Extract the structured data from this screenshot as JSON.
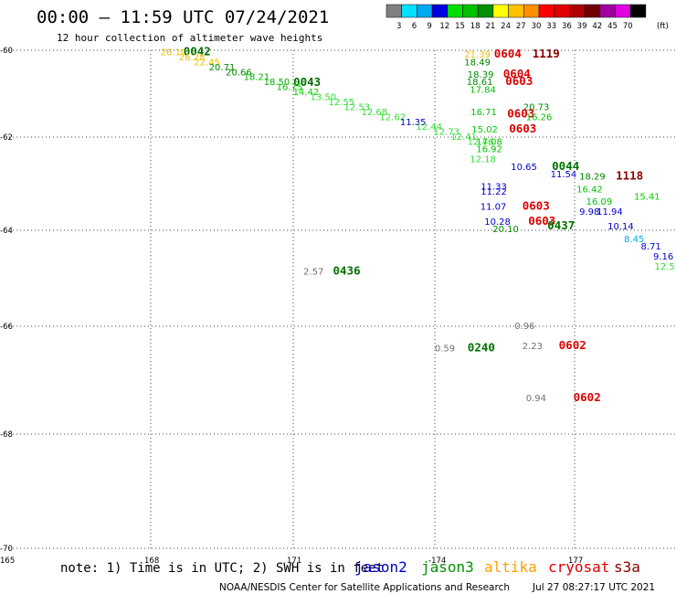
{
  "title": "00:00 – 11:59 UTC 07/24/2021",
  "subtitle": "12 hour collection of altimeter wave heights",
  "note": "note: 1) Time is in UTC; 2) SWH is in feet",
  "credit": "NOAA/NESDIS Center for Satellite Applications and Research",
  "generated": "Jul 27 08:27:17 UTC 2021",
  "colorbar": {
    "unit": "(ft)",
    "colors": [
      "#808080",
      "#00e0ff",
      "#00a8f0",
      "#0000e0",
      "#00e000",
      "#00c000",
      "#009000",
      "#ffff00",
      "#ffc000",
      "#ff9000",
      "#ff0000",
      "#e00000",
      "#b00000",
      "#700000",
      "#a000a0",
      "#e000e0",
      "#000000"
    ],
    "labels": [
      "3",
      "6",
      "9",
      "12",
      "15",
      "18",
      "21",
      "24",
      "27",
      "30",
      "33",
      "36",
      "39",
      "42",
      "45",
      "70"
    ]
  },
  "legend": [
    {
      "name": "jason2",
      "color": "#0000cc"
    },
    {
      "name": "jason3",
      "color": "#009000"
    },
    {
      "name": "altika",
      "color": "#ffa000"
    },
    {
      "name": "cryosat",
      "color": "#dd0000"
    },
    {
      "name": "s3a",
      "color": "#880000"
    }
  ],
  "chart_data": {
    "type": "scatter",
    "x_ticks": [
      "165",
      "168",
      "171",
      "-174",
      "177"
    ],
    "y_ticks": [
      "-60",
      "-62",
      "-64",
      "-66",
      "-68",
      "-70"
    ],
    "ylim": [
      -70,
      -60
    ],
    "grid": true,
    "points": [
      {
        "t": "26.10",
        "lon": 168.32,
        "lat": -60.1,
        "c": "#f0c000"
      },
      {
        "t": "0042",
        "lon": 168.82,
        "lat": -60.1,
        "c": "#007000",
        "time": true
      },
      {
        "t": "26.28",
        "lon": 168.72,
        "lat": -60.2,
        "c": "#f0c000"
      },
      {
        "t": "22.45",
        "lon": 169.05,
        "lat": -60.3,
        "c": "#f0c000"
      },
      {
        "t": "20.71",
        "lon": 169.38,
        "lat": -60.4,
        "c": "#008800"
      },
      {
        "t": "20.66",
        "lon": 169.75,
        "lat": -60.5,
        "c": "#008800"
      },
      {
        "t": "18.21",
        "lon": 170.14,
        "lat": -60.6,
        "c": "#00b000"
      },
      {
        "t": "18.50",
        "lon": 170.58,
        "lat": -60.7,
        "c": "#00b000"
      },
      {
        "t": "0043",
        "lon": 171.23,
        "lat": -60.72,
        "c": "#007000",
        "time": true
      },
      {
        "t": "16.75",
        "lon": 170.86,
        "lat": -60.8,
        "c": "#00c000"
      },
      {
        "t": "14.42",
        "lon": 171.22,
        "lat": -60.9,
        "c": "#00d000"
      },
      {
        "t": "13.50",
        "lon": 171.6,
        "lat": -61.0,
        "c": "#33dd33"
      },
      {
        "t": "12.55",
        "lon": 172.0,
        "lat": -61.1,
        "c": "#33dd33"
      },
      {
        "t": "12.53",
        "lon": 172.34,
        "lat": -61.2,
        "c": "#33dd33"
      },
      {
        "t": "12.68",
        "lon": 172.72,
        "lat": -61.3,
        "c": "#33dd33"
      },
      {
        "t": "12.62",
        "lon": 173.12,
        "lat": -61.4,
        "c": "#33dd33"
      },
      {
        "t": "11.35",
        "lon": 173.57,
        "lat": -61.5,
        "c": "#0000cc"
      },
      {
        "t": "12.44",
        "lon": 173.92,
        "lat": -61.6,
        "c": "#33dd33"
      },
      {
        "t": "12.73",
        "lon": 174.3,
        "lat": -61.7,
        "c": "#33dd33"
      },
      {
        "t": "12.41",
        "lon": 174.68,
        "lat": -61.8,
        "c": "#33dd33"
      },
      {
        "t": "12.46",
        "lon": 175.05,
        "lat": -61.9,
        "c": "#33dd33"
      },
      {
        "t": "21.39",
        "lon": 174.98,
        "lat": -60.15,
        "c": "#f0c000"
      },
      {
        "t": "0604",
        "lon": 175.63,
        "lat": -60.15,
        "c": "#dd0000",
        "time": true
      },
      {
        "t": "1119",
        "lon": 176.47,
        "lat": -60.15,
        "c": "#880000",
        "time": true
      },
      {
        "t": "18.49",
        "lon": 174.98,
        "lat": -60.3,
        "c": "#008800"
      },
      {
        "t": "18.39",
        "lon": 175.05,
        "lat": -60.55,
        "c": "#008800"
      },
      {
        "t": "0604",
        "lon": 175.83,
        "lat": -60.55,
        "c": "#dd0000",
        "time": true
      },
      {
        "t": "18.61",
        "lon": 175.03,
        "lat": -60.7,
        "c": "#008800"
      },
      {
        "t": "0603",
        "lon": 175.88,
        "lat": -60.7,
        "c": "#dd0000",
        "time": true
      },
      {
        "t": "17.84",
        "lon": 175.1,
        "lat": -60.85,
        "c": "#00c000"
      },
      {
        "t": "20.73",
        "lon": 176.27,
        "lat": -61.2,
        "c": "#008800"
      },
      {
        "t": "16.71",
        "lon": 175.12,
        "lat": -61.3,
        "c": "#00c000"
      },
      {
        "t": "0603",
        "lon": 175.92,
        "lat": -61.35,
        "c": "#dd0000",
        "time": true
      },
      {
        "t": "16.26",
        "lon": 176.33,
        "lat": -61.4,
        "c": "#00c000"
      },
      {
        "t": "15.02",
        "lon": 175.14,
        "lat": -61.65,
        "c": "#00d000"
      },
      {
        "t": "0603",
        "lon": 175.96,
        "lat": -61.65,
        "c": "#dd0000",
        "time": true
      },
      {
        "t": "17.08",
        "lon": 175.24,
        "lat": -61.9,
        "c": "#00c000"
      },
      {
        "t": "16.92",
        "lon": 175.24,
        "lat": -62.05,
        "c": "#00c000"
      },
      {
        "t": "12.18",
        "lon": 175.1,
        "lat": -62.25,
        "c": "#33dd33"
      },
      {
        "t": "10.65",
        "lon": 176.0,
        "lat": -62.4,
        "c": "#0000cc"
      },
      {
        "t": "0044",
        "lon": 176.9,
        "lat": -62.4,
        "c": "#007000",
        "time": true
      },
      {
        "t": "11.54",
        "lon": 176.87,
        "lat": -62.55,
        "c": "#0000cc"
      },
      {
        "t": "18.29",
        "lon": 177.5,
        "lat": -62.6,
        "c": "#008800"
      },
      {
        "t": "1118",
        "lon": 178.3,
        "lat": -62.6,
        "c": "#880000",
        "time": true
      },
      {
        "t": "11.33",
        "lon": 175.34,
        "lat": -62.8,
        "c": "#0000cc"
      },
      {
        "t": "11.22",
        "lon": 175.34,
        "lat": -62.9,
        "c": "#0000cc"
      },
      {
        "t": "16.42",
        "lon": 177.44,
        "lat": -62.85,
        "c": "#00c000"
      },
      {
        "t": "15.41",
        "lon": 178.7,
        "lat": -63.0,
        "c": "#00d000"
      },
      {
        "t": "16.09",
        "lon": 177.65,
        "lat": -63.1,
        "c": "#00c000"
      },
      {
        "t": "11.07",
        "lon": 175.33,
        "lat": -63.2,
        "c": "#0000cc"
      },
      {
        "t": "0603",
        "lon": 176.25,
        "lat": -63.2,
        "c": "#dd0000",
        "time": true
      },
      {
        "t": "9.98",
        "lon": 177.5,
        "lat": -63.3,
        "c": "#0000cc"
      },
      {
        "t": "11.94",
        "lon": 177.88,
        "lat": -63.3,
        "c": "#0000cc"
      },
      {
        "t": "10.28",
        "lon": 175.42,
        "lat": -63.5,
        "c": "#0000cc"
      },
      {
        "t": "0603",
        "lon": 176.38,
        "lat": -63.5,
        "c": "#dd0000",
        "time": true
      },
      {
        "t": "0437",
        "lon": 176.8,
        "lat": -63.6,
        "c": "#007000",
        "time": true
      },
      {
        "t": "10.14",
        "lon": 178.12,
        "lat": -63.6,
        "c": "#0000cc"
      },
      {
        "t": "20.10",
        "lon": 175.6,
        "lat": -63.65,
        "c": "#008800"
      },
      {
        "t": "8.45",
        "lon": 178.48,
        "lat": -63.85,
        "c": "#00a8f0"
      },
      {
        "t": "8.71",
        "lon": 178.85,
        "lat": -64.0,
        "c": "#0000cc"
      },
      {
        "t": "9.16",
        "lon": 179.12,
        "lat": -64.2,
        "c": "#0000cc"
      },
      {
        "t": "12.5",
        "lon": 179.15,
        "lat": -64.4,
        "c": "#33dd33"
      },
      {
        "t": "2.57",
        "lon": 171.45,
        "lat": -64.5,
        "c": "#707070"
      },
      {
        "t": "0436",
        "lon": 172.1,
        "lat": -64.5,
        "c": "#007000",
        "time": true
      },
      {
        "t": "0.96",
        "lon": 176.08,
        "lat": -65.6,
        "c": "#707070"
      },
      {
        "t": "2.23",
        "lon": 176.25,
        "lat": -66.0,
        "c": "#707070"
      },
      {
        "t": "0602",
        "lon": 177.05,
        "lat": -66.0,
        "c": "#dd0000",
        "time": true
      },
      {
        "t": "0.59",
        "lon": 174.33,
        "lat": -66.05,
        "c": "#707070"
      },
      {
        "t": "0240",
        "lon": 175.05,
        "lat": -66.05,
        "c": "#007000",
        "time": true
      },
      {
        "t": "0.94",
        "lon": 176.33,
        "lat": -67.05,
        "c": "#707070"
      },
      {
        "t": "0602",
        "lon": 177.37,
        "lat": -67.05,
        "c": "#dd0000",
        "time": true
      }
    ]
  }
}
